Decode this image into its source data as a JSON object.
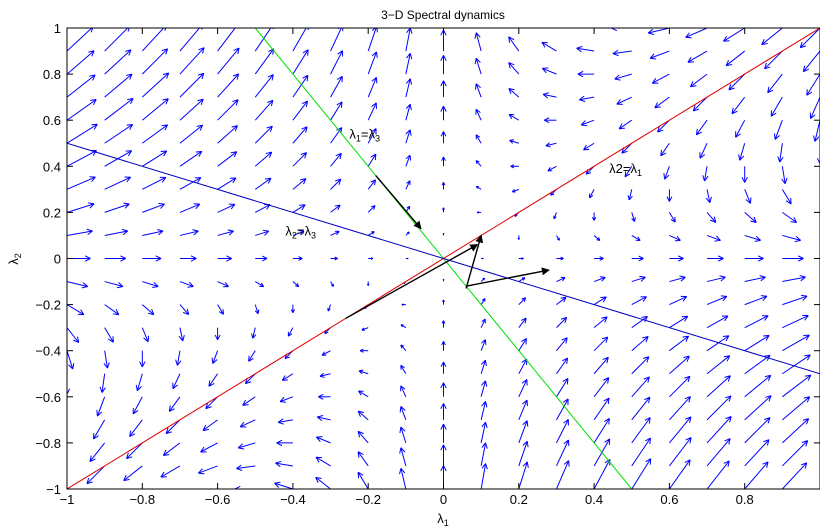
{
  "chart_data": {
    "type": "quiver",
    "title": "3−D Spectral dynamics",
    "xlabel": {
      "base": "λ",
      "sub": "1"
    },
    "ylabel": {
      "base": "λ",
      "sub": "2"
    },
    "xlim": [
      -1,
      1
    ],
    "ylim": [
      -1,
      1
    ],
    "xticks": [
      -1,
      -0.8,
      -0.6,
      -0.4,
      -0.2,
      0,
      0.2,
      0.4,
      0.6,
      0.8
    ],
    "yticks": [
      -1,
      -0.8,
      -0.6,
      -0.4,
      -0.2,
      0,
      0.2,
      0.4,
      0.6,
      0.8,
      1
    ],
    "xtick_labels": [
      "−1",
      "−0.8",
      "−0.6",
      "−0.4",
      "−0.2",
      "0",
      "0.2",
      "0.4",
      "0.6",
      "0.8"
    ],
    "ytick_labels": [
      "−1",
      "−0.8",
      "−0.6",
      "−0.4",
      "−0.2",
      "0",
      "0.2",
      "0.4",
      "0.6",
      "0.8",
      "1"
    ],
    "grid": false,
    "vector_field": {
      "color": "#0000ff",
      "x_start": -1,
      "x_step": 0.1,
      "x_count": 21,
      "y_start": -1,
      "y_step": 0.1,
      "y_count": 21,
      "formula": "u = l1^2 - 2*l1*l2, v = l2^2 - 2*l1*l2 (traceless 3-D spectrum, l3 = -l1 - l2)"
    },
    "lines": [
      {
        "name": "l1=l3",
        "color": "#00e000",
        "x": [
          -0.5,
          0.5
        ],
        "y": [
          1,
          -1
        ]
      },
      {
        "name": "l2=l1",
        "color": "#e00000",
        "x": [
          -1,
          1
        ],
        "y": [
          -1,
          1
        ]
      },
      {
        "name": "l2=l3",
        "color": "#0000c0",
        "x": [
          -1,
          1
        ],
        "y": [
          0.5,
          -0.5
        ]
      }
    ],
    "eigen_arrows": [
      {
        "from": [
          -0.18,
          0.36
        ],
        "to": [
          -0.06,
          0.13
        ]
      },
      {
        "from": [
          0.06,
          -0.12
        ],
        "to": [
          0.28,
          -0.05
        ]
      },
      {
        "from": [
          0.06,
          -0.13
        ],
        "to": [
          0.1,
          0.1
        ]
      },
      {
        "from": [
          -0.26,
          -0.26
        ],
        "to": [
          0.09,
          0.06
        ]
      }
    ],
    "annotations": [
      {
        "id": "l1-eq-l3",
        "base1": "λ",
        "sub1": "1",
        "mid": "=",
        "base2": "λ",
        "sub2": "3",
        "x": -0.25,
        "y": 0.52
      },
      {
        "id": "l2-eq-l3",
        "base1": "λ",
        "sub1": "2",
        "mid": "=",
        "base2": "λ",
        "sub2": "3",
        "x": -0.42,
        "y": 0.1
      },
      {
        "id": "l2-eq-l1",
        "base1": "λ2=",
        "sub1": "",
        "mid": "",
        "base2": "λ",
        "sub2": "1",
        "x": 0.44,
        "y": 0.37
      }
    ]
  }
}
